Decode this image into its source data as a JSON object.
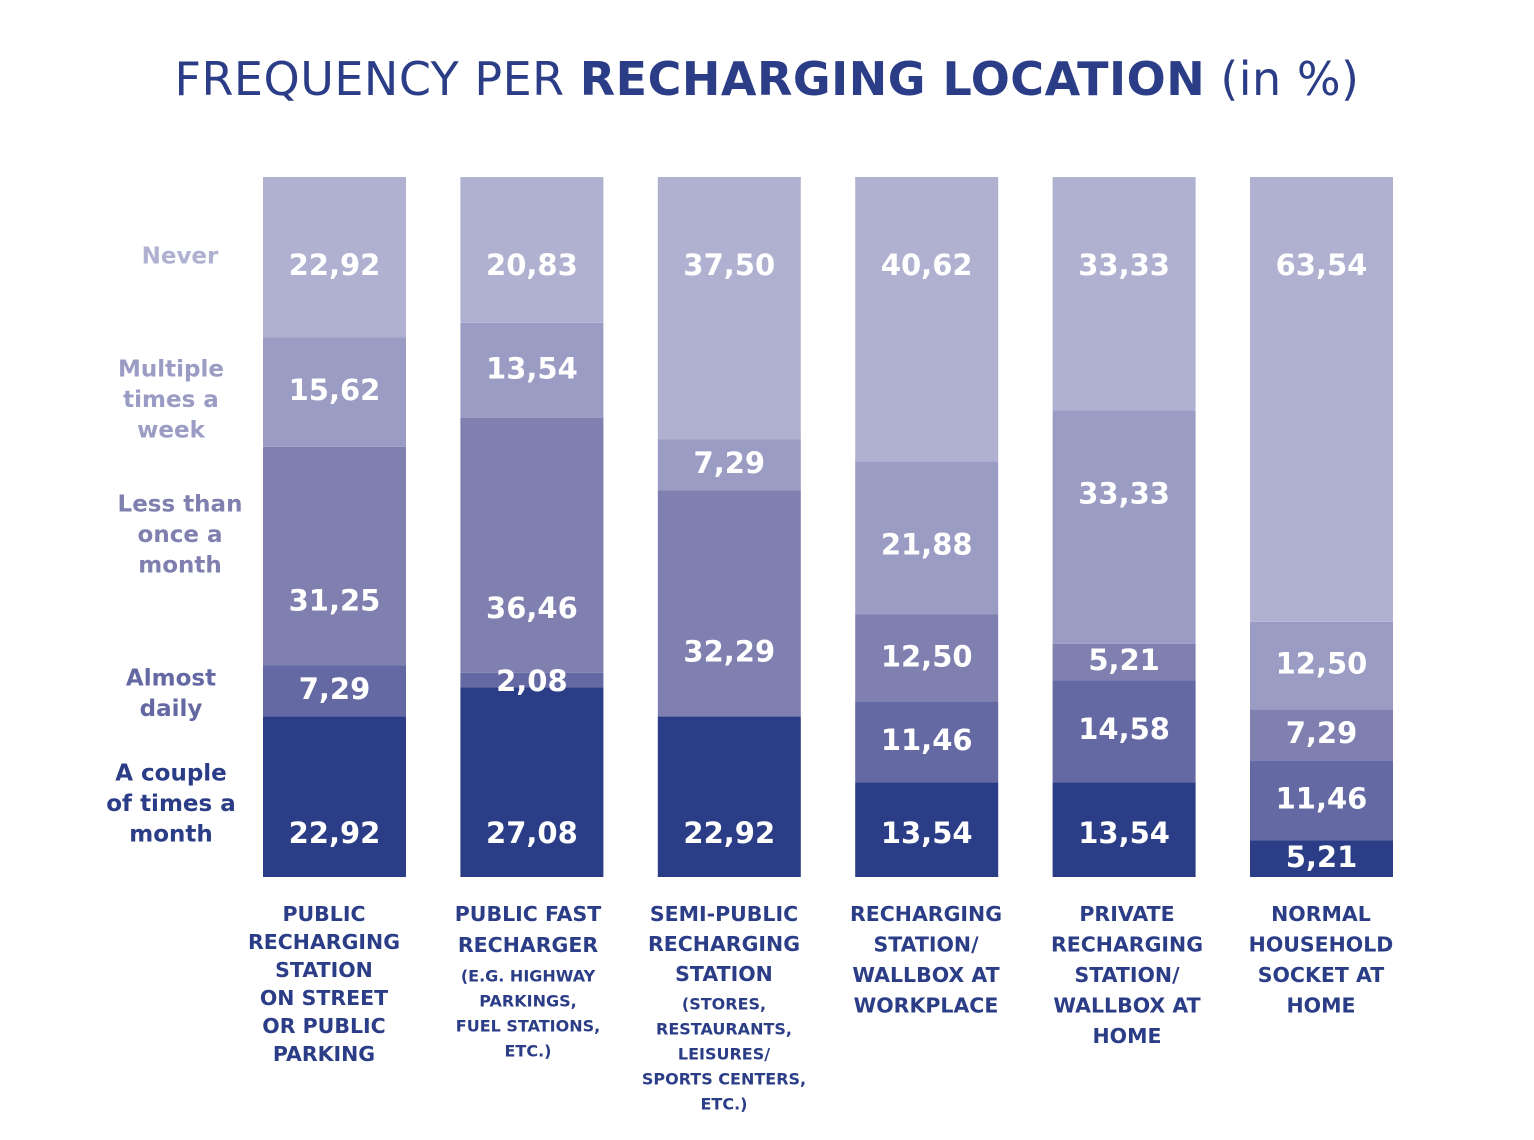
{
  "title": {
    "part1": "FREQUENCY PER ",
    "part2": "RECHARGING LOCATION",
    "part3": " (in %)"
  },
  "colors": {
    "never": "#b0b1d1",
    "multiple_times_a_week": "#9b9cc4",
    "less_than_once_a_month": "#7f7fb0",
    "almost_daily": "#6469a4",
    "a_couple_of_times_a_month": "#2b3d86",
    "text_dark": "#2b3d86"
  },
  "chart_data": {
    "type": "bar",
    "stacked": true,
    "title": "FREQUENCY PER RECHARGING LOCATION (in %)",
    "ylim": [
      0,
      100
    ],
    "grid": false,
    "legend_position": "left",
    "categories": [
      [
        "PUBLIC",
        "RECHARGING",
        "STATION",
        "ON STREET",
        "OR PUBLIC",
        "PARKING"
      ],
      [
        "PUBLIC FAST",
        "RECHARGER",
        "(E.G. HIGHWAY",
        "PARKINGS,",
        "FUEL STATIONS,",
        "ETC.)"
      ],
      [
        "SEMI-PUBLIC",
        "RECHARGING",
        "STATION",
        "(STORES,",
        "RESTAURANTS,",
        "LEISURES/",
        "SPORTS CENTERS,",
        "ETC.)"
      ],
      [
        "RECHARGING",
        "STATION/",
        "WALLBOX AT",
        "WORKPLACE"
      ],
      [
        "PRIVATE",
        "RECHARGING",
        "STATION/",
        "WALLBOX AT",
        "HOME"
      ],
      [
        "NORMAL",
        "HOUSEHOLD",
        "SOCKET AT",
        "HOME"
      ]
    ],
    "series": [
      {
        "name": [
          "A couple",
          "of times a",
          "month"
        ],
        "color_key": "a_couple_of_times_a_month",
        "values": [
          22.92,
          27.08,
          22.92,
          13.54,
          13.54,
          5.21
        ],
        "labels": [
          "22,92",
          "27,08",
          "22,92",
          "13,54",
          "13,54",
          "5,21"
        ]
      },
      {
        "name": [
          "Almost",
          "daily"
        ],
        "color_key": "almost_daily",
        "values": [
          7.29,
          2.08,
          0,
          11.46,
          14.58,
          11.46
        ],
        "labels": [
          "7,29",
          "2,08",
          "",
          "11,46",
          "14,58",
          "11,46"
        ]
      },
      {
        "name": [
          "Less than",
          "once a",
          "month"
        ],
        "color_key": "less_than_once_a_month",
        "values": [
          31.25,
          36.46,
          32.29,
          12.5,
          5.21,
          7.29
        ],
        "labels": [
          "31,25",
          "36,46",
          "32,29",
          "12,50",
          "5,21",
          "7,29"
        ]
      },
      {
        "name": [
          "Multiple",
          "times a",
          "week"
        ],
        "color_key": "multiple_times_a_week",
        "values": [
          15.62,
          13.54,
          7.29,
          21.88,
          33.33,
          12.5
        ],
        "labels": [
          "15,62",
          "13,54",
          "7,29",
          "21,88",
          "33,33",
          "12,50"
        ]
      },
      {
        "name": [
          "Never"
        ],
        "color_key": "never",
        "values": [
          22.92,
          20.83,
          37.5,
          40.62,
          33.33,
          63.54
        ],
        "labels": [
          "22,92",
          "20,83",
          "37,50",
          "40,62",
          "33,33",
          "63,54"
        ]
      }
    ]
  }
}
